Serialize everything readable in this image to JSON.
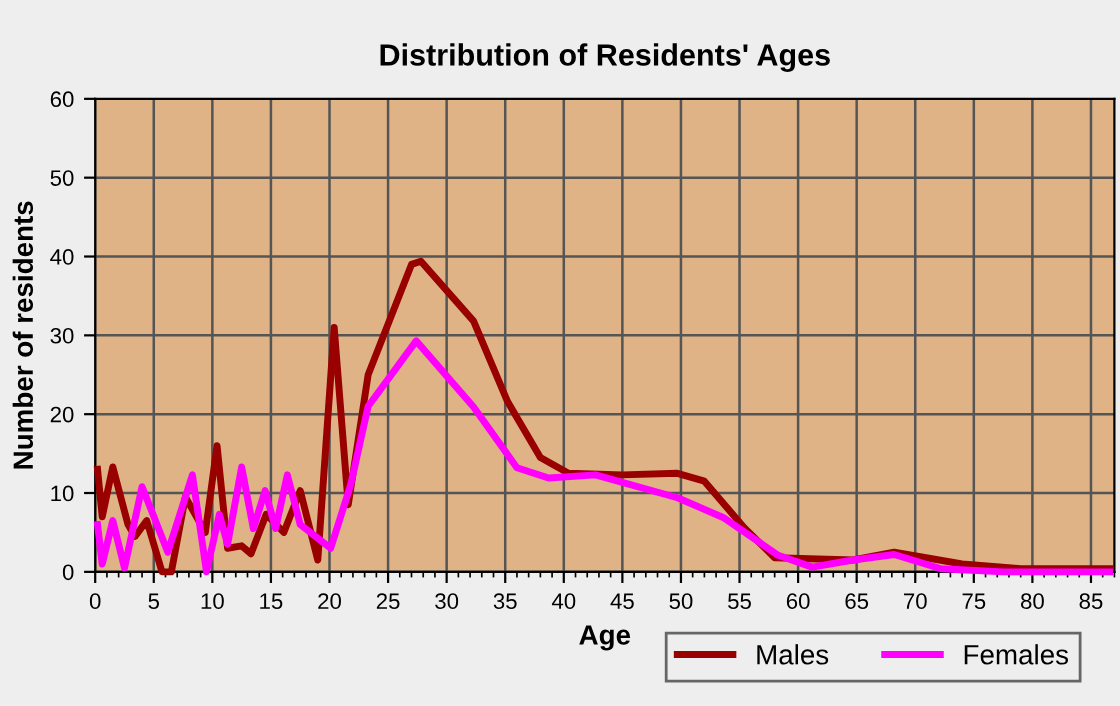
{
  "chart_data": {
    "type": "line",
    "title": "Distribution of Residents' Ages",
    "xlabel": "Age",
    "ylabel": "Number of residents",
    "xlim": [
      0,
      87
    ],
    "xticks": [
      0,
      5,
      10,
      15,
      20,
      25,
      30,
      35,
      40,
      45,
      50,
      55,
      60,
      65,
      70,
      75,
      80,
      85
    ],
    "ylim": [
      0,
      60
    ],
    "yticks": [
      0,
      10,
      20,
      30,
      40,
      50,
      60
    ],
    "grid": true,
    "legend": "bottom right",
    "marker": "none",
    "line_style": "solid",
    "series": [
      {
        "name": "Males",
        "color": "#990000",
        "x": [
          0.2,
          0.6,
          1.5,
          2.8,
          3.4,
          4.4,
          5.7,
          6.5,
          7.7,
          9.4,
          10.4,
          11.3,
          12.5,
          13.3,
          14.6,
          16.1,
          17.5,
          19,
          20.4,
          21.6,
          23.3,
          27,
          27.8,
          32.3,
          35.2,
          38,
          40.4,
          45,
          49.7,
          52,
          55.4,
          58,
          64.7,
          68.2,
          74,
          79,
          86.6
        ],
        "values": [
          13,
          7,
          13.3,
          6,
          4.5,
          6.5,
          0,
          0,
          9.5,
          5,
          16,
          3,
          3.3,
          2.3,
          7.3,
          5,
          10.3,
          1.5,
          31,
          8.5,
          25,
          39,
          39.4,
          31.8,
          21.6,
          14.5,
          12.5,
          12.3,
          12.5,
          11.5,
          5.6,
          1.8,
          1.5,
          2.5,
          1.0,
          0.4,
          0.4
        ]
      },
      {
        "name": "Females",
        "color": "#ff00ff",
        "x": [
          0.2,
          0.6,
          1.5,
          2.5,
          4,
          6.2,
          8.3,
          9.5,
          10.6,
          11.3,
          12.5,
          13.5,
          14.5,
          15.4,
          16.4,
          17.5,
          20.1,
          21.8,
          23.3,
          27.4,
          32.3,
          36,
          38.7,
          42.7,
          49.7,
          53.6,
          58.3,
          61.2,
          64.7,
          68.2,
          72.2,
          77.5,
          86.6
        ],
        "values": [
          6,
          1,
          6.5,
          0.5,
          10.8,
          2.5,
          12.3,
          0,
          7.3,
          3.5,
          13.3,
          5.5,
          10.3,
          5.5,
          12.3,
          6,
          3,
          11,
          21,
          29.3,
          20.9,
          13.2,
          11.9,
          12.3,
          9.4,
          6.9,
          2.1,
          0.6,
          1.5,
          2.2,
          0.4,
          0,
          0
        ]
      }
    ]
  }
}
